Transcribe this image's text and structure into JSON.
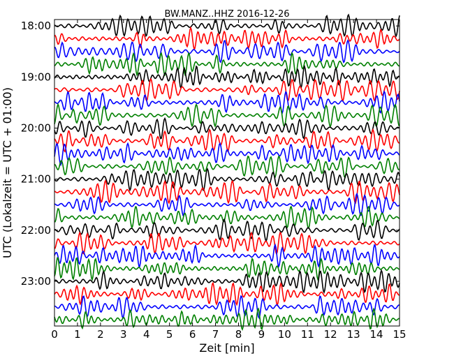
{
  "chart_data": {
    "type": "line",
    "title": "BW.MANZ..HHZ 2016-12-26",
    "xlabel": "Zeit  [min]",
    "ylabel": "UTC (Lokalzeit = UTC + 01:00)",
    "xlim": [
      0,
      15
    ],
    "x_ticks": [
      "0",
      "1",
      "2",
      "3",
      "4",
      "5",
      "6",
      "7",
      "8",
      "9",
      "10",
      "11",
      "12",
      "13",
      "14",
      "15"
    ],
    "y_tick_labels": [
      "18:00",
      "19:00",
      "20:00",
      "21:00",
      "22:00",
      "23:00"
    ],
    "trace_minutes": 15,
    "trace_count": 24,
    "start_time": "18:00",
    "trace_colors": [
      "#000000",
      "#ff0000",
      "#0000ff",
      "#008000"
    ],
    "grid": false
  }
}
